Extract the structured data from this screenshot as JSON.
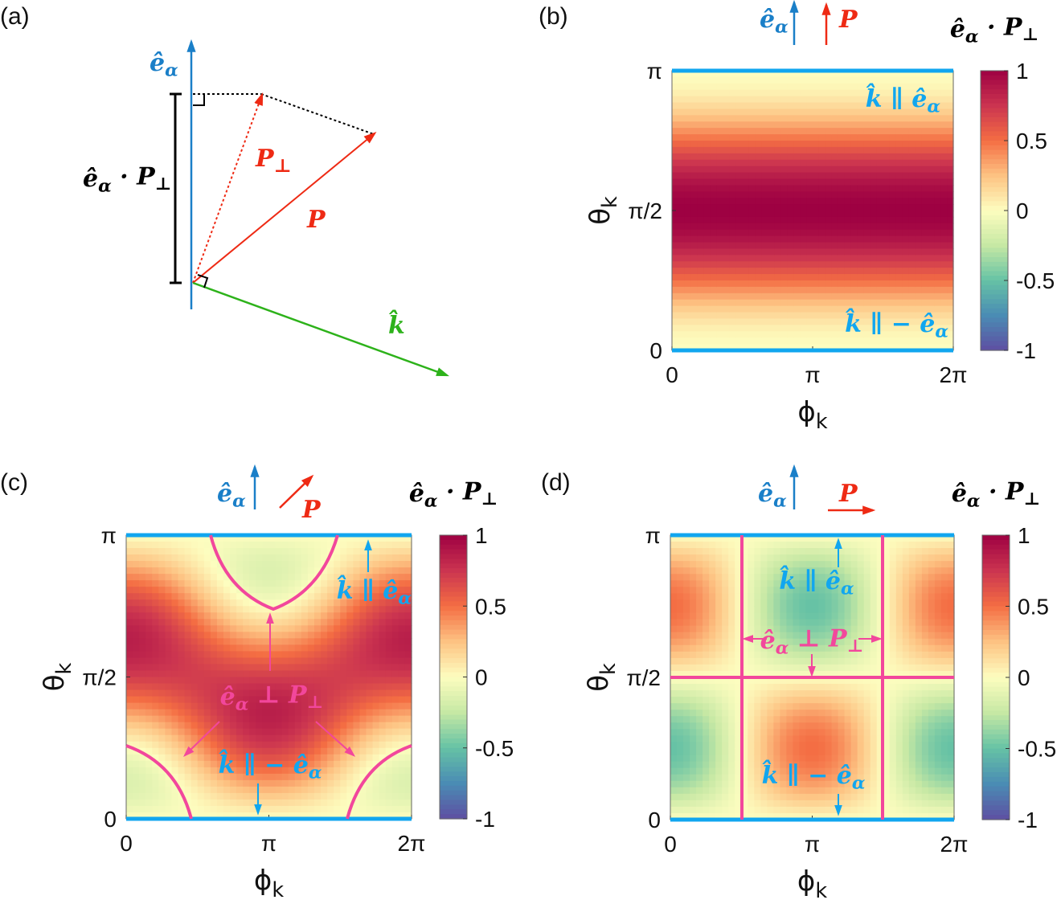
{
  "panel_labels": [
    "(a)",
    "(b)",
    "(c)",
    "(d)"
  ],
  "colors": {
    "e_alpha": "#1a7fc8",
    "P": "#ee2a14",
    "k": "#2db21a",
    "annot_blue": "#11a6ef",
    "annot_pink": "#f2479c",
    "boundary": "#11a6ef"
  },
  "symbols": {
    "e_alpha": [
      {
        "t": "ê"
      },
      {
        "t": "α",
        "sub": true
      }
    ],
    "projection": [
      {
        "t": "ê"
      },
      {
        "t": "α",
        "sub": true
      },
      {
        "t": " · "
      },
      {
        "t": "P"
      },
      {
        "t": "⊥",
        "sub": true
      }
    ],
    "P": [
      {
        "t": "P"
      }
    ],
    "P_perp": [
      {
        "t": "P"
      },
      {
        "t": "⊥",
        "sub": true
      }
    ],
    "k": [
      {
        "t": "k̂"
      }
    ],
    "k_par_e": [
      {
        "t": "k̂"
      },
      {
        "t": " ∥ "
      },
      {
        "t": "ê"
      },
      {
        "t": "α",
        "sub": true
      }
    ],
    "k_par_minus_e": [
      {
        "t": "k̂"
      },
      {
        "t": " ∥ − "
      },
      {
        "t": "ê"
      },
      {
        "t": "α",
        "sub": true
      }
    ],
    "e_perp_P": [
      {
        "t": "ê"
      },
      {
        "t": "α",
        "sub": true
      },
      {
        "t": " ⊥ "
      },
      {
        "t": "P"
      },
      {
        "t": "⊥",
        "sub": true
      }
    ],
    "phi_k": [
      {
        "t": "ϕ"
      },
      {
        "t": "k",
        "sub": true
      }
    ],
    "theta_k": [
      {
        "t": "θ"
      },
      {
        "t": "k",
        "sub": true
      }
    ]
  },
  "chart_data": [
    {
      "panel": "(b)",
      "type": "heatmap",
      "title": "ê_α · P_⊥",
      "xlabel": "ϕ_k",
      "ylabel": "θ_k",
      "xlim": [
        0,
        6.2832
      ],
      "ylim": [
        0,
        3.1416
      ],
      "xticks": [
        "0",
        "π",
        "2π"
      ],
      "yticks": [
        "0",
        "π/2",
        "π"
      ],
      "clim": [
        -1,
        1
      ],
      "colorbar_ticks": [
        "-1",
        "-0.5",
        "0",
        "0.5",
        "1"
      ],
      "colormap": "spectral",
      "P_direction": [
        0,
        0,
        1
      ],
      "quantity": "ê_α·P − (P·k̂)(k̂·ê_α)",
      "annotations": [
        "k̂ ∥ ê_α",
        "k̂ ∥ −ê_α"
      ],
      "value_range": [
        0,
        1
      ]
    },
    {
      "panel": "(c)",
      "type": "heatmap",
      "title": "ê_α · P_⊥",
      "xlabel": "ϕ_k",
      "ylabel": "θ_k",
      "xlim": [
        0,
        6.2832
      ],
      "ylim": [
        0,
        3.1416
      ],
      "xticks": [
        "0",
        "π",
        "2π"
      ],
      "yticks": [
        "0",
        "π/2",
        "π"
      ],
      "clim": [
        -1,
        1
      ],
      "colorbar_ticks": [
        "-1",
        "-0.5",
        "0",
        "0.5",
        "1"
      ],
      "colormap": "spectral",
      "P_direction": [
        0.7071,
        0,
        0.7071
      ],
      "quantity": "ê_α·P − (P·k̂)(k̂·ê_α)",
      "annotations": [
        "k̂ ∥ ê_α",
        "k̂ ∥ −ê_α",
        "ê_α ⊥ P_⊥"
      ],
      "value_range": [
        -0.15,
        0.85
      ]
    },
    {
      "panel": "(d)",
      "type": "heatmap",
      "title": "ê_α · P_⊥",
      "xlabel": "ϕ_k",
      "ylabel": "θ_k",
      "xlim": [
        0,
        6.2832
      ],
      "ylim": [
        0,
        3.1416
      ],
      "xticks": [
        "0",
        "π",
        "2π"
      ],
      "yticks": [
        "0",
        "π/2",
        "π"
      ],
      "clim": [
        -1,
        1
      ],
      "colorbar_ticks": [
        "-1",
        "-0.5",
        "0",
        "0.5",
        "1"
      ],
      "colormap": "spectral",
      "P_direction": [
        1,
        0,
        0
      ],
      "quantity": "ê_α·P − (P·k̂)(k̂·ê_α)",
      "annotations": [
        "k̂ ∥ ê_α",
        "k̂ ∥ −ê_α",
        "ê_α ⊥ P_⊥"
      ],
      "value_range": [
        -0.5,
        0.5
      ]
    }
  ]
}
